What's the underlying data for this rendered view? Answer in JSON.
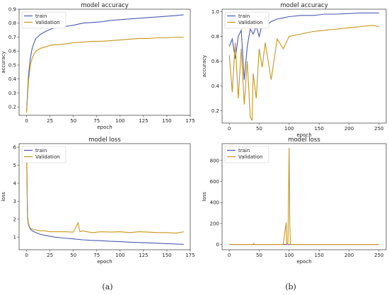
{
  "colors": {
    "train": "#4c5bb3",
    "validation": "#c8961c"
  },
  "captions": [
    "(a)",
    "(b)"
  ],
  "chart_data": [
    {
      "id": "a-acc",
      "type": "line",
      "title": "model accuracy",
      "xlabel": "epoch",
      "ylabel": "accuracy",
      "xlim": [
        -8,
        175
      ],
      "ylim": [
        0.14,
        0.9
      ],
      "xticks": [
        0,
        25,
        50,
        75,
        100,
        125,
        150,
        175
      ],
      "yticks": [
        0.2,
        0.3,
        0.4,
        0.5,
        0.6,
        0.7,
        0.8,
        0.9
      ],
      "xticklabels": [
        "0",
        "25",
        "50",
        "75",
        "100",
        "125",
        "150",
        "175"
      ],
      "yticklabels": [
        "0.2",
        "0.3",
        "0.4",
        "0.5",
        "0.6",
        "0.7",
        "0.8",
        "0.9"
      ],
      "legend": "top-left",
      "series": [
        {
          "name": "train",
          "x": [
            0,
            2,
            4,
            6,
            8,
            10,
            15,
            20,
            25,
            30,
            40,
            50,
            60,
            70,
            80,
            90,
            100,
            110,
            120,
            130,
            140,
            150,
            160,
            168
          ],
          "y": [
            0.17,
            0.42,
            0.55,
            0.62,
            0.66,
            0.69,
            0.72,
            0.74,
            0.755,
            0.765,
            0.775,
            0.785,
            0.8,
            0.805,
            0.81,
            0.82,
            0.825,
            0.83,
            0.835,
            0.84,
            0.845,
            0.85,
            0.855,
            0.86
          ]
        },
        {
          "name": "Validation",
          "x": [
            0,
            2,
            4,
            6,
            8,
            10,
            15,
            20,
            25,
            30,
            40,
            50,
            60,
            70,
            80,
            90,
            100,
            110,
            120,
            130,
            140,
            150,
            160,
            168
          ],
          "y": [
            0.16,
            0.38,
            0.5,
            0.55,
            0.58,
            0.6,
            0.62,
            0.63,
            0.64,
            0.645,
            0.65,
            0.66,
            0.665,
            0.67,
            0.67,
            0.675,
            0.68,
            0.685,
            0.69,
            0.69,
            0.695,
            0.695,
            0.7,
            0.7
          ]
        }
      ]
    },
    {
      "id": "b-acc",
      "type": "line",
      "title": "model accuracy",
      "xlabel": "epoch",
      "ylabel": "accuracy",
      "xlim": [
        -12,
        262
      ],
      "ylim": [
        0.1,
        1.02
      ],
      "xticks": [
        0,
        50,
        100,
        150,
        200,
        250
      ],
      "yticks": [
        0.2,
        0.4,
        0.6,
        0.8,
        1.0
      ],
      "xticklabels": [
        "0",
        "50",
        "100",
        "150",
        "200",
        "250"
      ],
      "yticklabels": [
        "0.2",
        "0.4",
        "0.6",
        "0.8",
        "1.0"
      ],
      "legend": "top-left",
      "series": [
        {
          "name": "train",
          "x": [
            0,
            5,
            10,
            15,
            20,
            25,
            30,
            35,
            40,
            45,
            50,
            55,
            60,
            70,
            80,
            90,
            100,
            120,
            140,
            160,
            180,
            200,
            220,
            240,
            250
          ],
          "y": [
            0.72,
            0.78,
            0.62,
            0.8,
            0.85,
            0.45,
            0.72,
            0.86,
            0.82,
            0.88,
            0.8,
            0.9,
            0.88,
            0.92,
            0.94,
            0.95,
            0.96,
            0.97,
            0.97,
            0.98,
            0.98,
            0.985,
            0.99,
            0.99,
            0.99
          ]
        },
        {
          "name": "Validation",
          "x": [
            0,
            5,
            10,
            15,
            20,
            25,
            30,
            35,
            38,
            40,
            45,
            50,
            55,
            60,
            70,
            80,
            90,
            100,
            120,
            140,
            160,
            180,
            200,
            220,
            240,
            250
          ],
          "y": [
            0.65,
            0.35,
            0.75,
            0.3,
            0.7,
            0.25,
            0.6,
            0.15,
            0.12,
            0.5,
            0.3,
            0.7,
            0.55,
            0.75,
            0.45,
            0.78,
            0.7,
            0.8,
            0.82,
            0.84,
            0.85,
            0.86,
            0.87,
            0.88,
            0.89,
            0.88
          ]
        }
      ]
    },
    {
      "id": "a-loss",
      "type": "line",
      "title": "model loss",
      "xlabel": "epoch",
      "ylabel": "loss",
      "xlim": [
        -8,
        175
      ],
      "ylim": [
        0.3,
        6.2
      ],
      "xticks": [
        0,
        25,
        50,
        75,
        100,
        125,
        150,
        175
      ],
      "yticks": [
        1,
        2,
        3,
        4,
        5,
        6
      ],
      "xticklabels": [
        "0",
        "25",
        "50",
        "75",
        "100",
        "125",
        "150",
        "175"
      ],
      "yticklabels": [
        "1",
        "2",
        "3",
        "4",
        "5",
        "6"
      ],
      "legend": "top-left",
      "series": [
        {
          "name": "train",
          "x": [
            0,
            1,
            2,
            3,
            4,
            6,
            8,
            10,
            15,
            20,
            25,
            30,
            40,
            50,
            60,
            70,
            80,
            90,
            100,
            110,
            120,
            130,
            140,
            150,
            160,
            168
          ],
          "y": [
            6.0,
            2.1,
            1.7,
            1.55,
            1.45,
            1.35,
            1.3,
            1.25,
            1.15,
            1.1,
            1.05,
            1.0,
            0.95,
            0.9,
            0.85,
            0.82,
            0.8,
            0.77,
            0.75,
            0.72,
            0.7,
            0.68,
            0.66,
            0.64,
            0.62,
            0.6
          ]
        },
        {
          "name": "Validation",
          "x": [
            0,
            1,
            2,
            3,
            4,
            6,
            8,
            10,
            15,
            20,
            25,
            30,
            40,
            50,
            55,
            57,
            60,
            70,
            80,
            90,
            100,
            110,
            120,
            130,
            140,
            150,
            160,
            168
          ],
          "y": [
            5.5,
            2.2,
            1.8,
            1.6,
            1.5,
            1.45,
            1.4,
            1.4,
            1.35,
            1.35,
            1.3,
            1.3,
            1.3,
            1.28,
            1.8,
            1.3,
            1.35,
            1.25,
            1.3,
            1.28,
            1.3,
            1.25,
            1.3,
            1.28,
            1.25,
            1.25,
            1.22,
            1.3
          ]
        }
      ]
    },
    {
      "id": "b-loss",
      "type": "line",
      "title": "model loss",
      "xlabel": "epoch",
      "ylabel": "loss",
      "xlim": [
        -12,
        262
      ],
      "ylim": [
        -50,
        960
      ],
      "xticks": [
        0,
        50,
        100,
        150,
        200,
        250
      ],
      "yticks": [
        0,
        200,
        400,
        600,
        800
      ],
      "xticklabels": [
        "0",
        "50",
        "100",
        "150",
        "200",
        "250"
      ],
      "yticklabels": [
        "0",
        "200",
        "400",
        "600",
        "800"
      ],
      "legend": "top-left",
      "series": [
        {
          "name": "train",
          "x": [
            0,
            50,
            100,
            150,
            200,
            250
          ],
          "y": [
            0,
            0,
            0,
            0,
            0,
            0
          ]
        },
        {
          "name": "Validation",
          "x": [
            0,
            40,
            41,
            42,
            80,
            90,
            95,
            96,
            97,
            98,
            100,
            101,
            102,
            103,
            150,
            200,
            250
          ],
          "y": [
            0,
            0,
            10,
            0,
            0,
            0,
            210,
            0,
            0,
            20,
            920,
            200,
            0,
            0,
            0,
            0,
            0
          ]
        }
      ]
    }
  ]
}
